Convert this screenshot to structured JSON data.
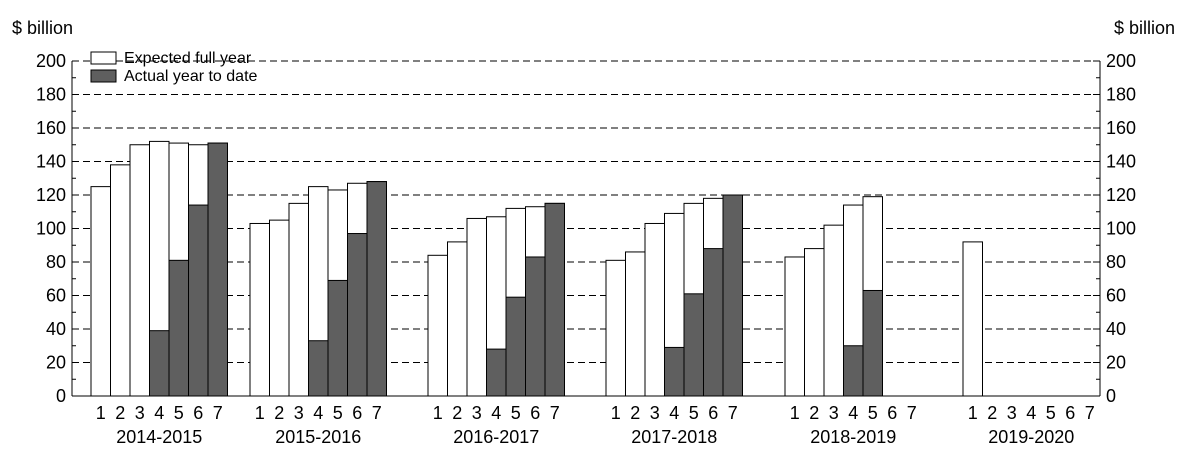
{
  "chart_data": {
    "type": "bar",
    "y_unit_left": "$ billion",
    "y_unit_right": "$ billion",
    "ylim": [
      0,
      200
    ],
    "yticks": [
      "0",
      "20",
      "40",
      "60",
      "80",
      "100",
      "120",
      "140",
      "160",
      "180",
      "200"
    ],
    "grid": "dashed horizontal lines every 20",
    "legend_position": "top-left",
    "series": [
      {
        "name": "Expected full year",
        "color": "#ffffff"
      },
      {
        "name": "Actual year to date",
        "color": "#5f5f5f"
      }
    ],
    "groups": [
      {
        "label": "2014-2015",
        "bar_labels": [
          "1",
          "2",
          "3",
          "4",
          "5",
          "6",
          "7"
        ],
        "expected": [
          125,
          138,
          150,
          152,
          151,
          150,
          151
        ],
        "actual": [
          null,
          null,
          null,
          39,
          81,
          114,
          151
        ]
      },
      {
        "label": "2015-2016",
        "bar_labels": [
          "1",
          "2",
          "3",
          "4",
          "5",
          "6",
          "7"
        ],
        "expected": [
          103,
          105,
          115,
          125,
          123,
          127,
          128
        ],
        "actual": [
          null,
          null,
          null,
          33,
          69,
          97,
          128
        ]
      },
      {
        "label": "2016-2017",
        "bar_labels": [
          "1",
          "2",
          "3",
          "4",
          "5",
          "6",
          "7"
        ],
        "expected": [
          84,
          92,
          106,
          107,
          112,
          113,
          115
        ],
        "actual": [
          null,
          null,
          null,
          28,
          59,
          83,
          115
        ]
      },
      {
        "label": "2017-2018",
        "bar_labels": [
          "1",
          "2",
          "3",
          "4",
          "5",
          "6",
          "7"
        ],
        "expected": [
          81,
          86,
          103,
          109,
          115,
          118,
          120
        ],
        "actual": [
          null,
          null,
          null,
          29,
          61,
          88,
          120
        ]
      },
      {
        "label": "2018-2019",
        "bar_labels": [
          "1",
          "2",
          "3",
          "4",
          "5",
          "6",
          "7"
        ],
        "expected": [
          83,
          88,
          102,
          114,
          119,
          null,
          null
        ],
        "actual": [
          null,
          null,
          null,
          30,
          63,
          null,
          null
        ]
      },
      {
        "label": "2019-2020",
        "bar_labels": [
          "1",
          "2",
          "3",
          "4",
          "5",
          "6",
          "7"
        ],
        "expected": [
          92,
          null,
          null,
          null,
          null,
          null,
          null
        ],
        "actual": [
          null,
          null,
          null,
          null,
          null,
          null,
          null
        ]
      }
    ]
  }
}
